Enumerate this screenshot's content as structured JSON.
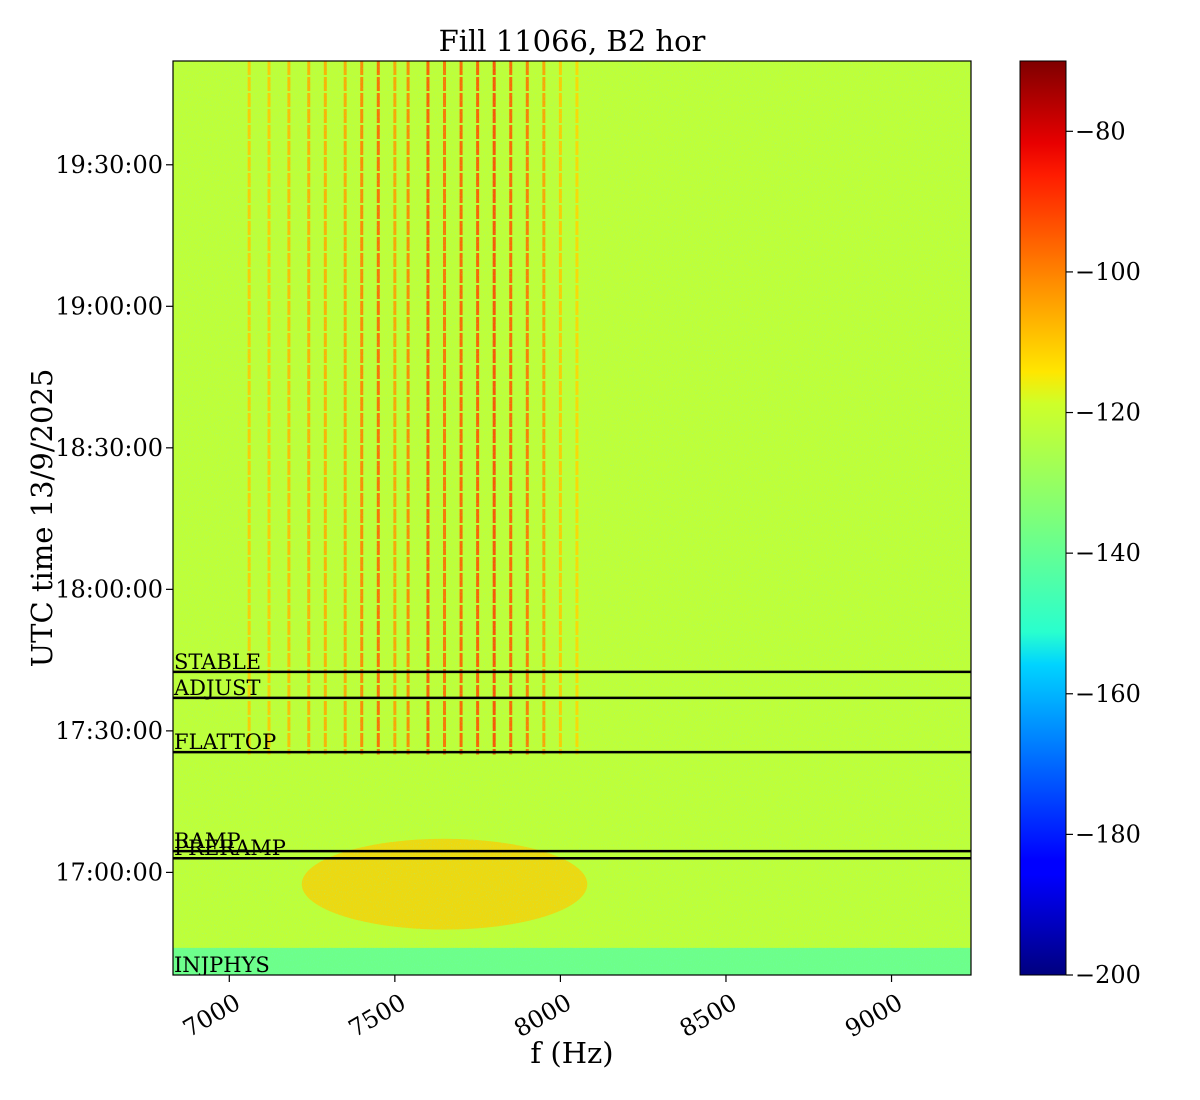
{
  "chart_data": {
    "type": "heatmap",
    "title": "Fill 11066, B2 hor",
    "xlabel": "f (Hz)",
    "ylabel": "UTC time 13/9/2025",
    "x_range": [
      6830,
      9240
    ],
    "y_range": [
      "16:38:15",
      "19:52:00"
    ],
    "x_ticks": [
      7000,
      7500,
      8000,
      8500,
      9000
    ],
    "x_tick_labels": [
      "7000",
      "7500",
      "8000",
      "8500",
      "9000"
    ],
    "y_ticks": [
      "17:00:00",
      "17:30:00",
      "18:00:00",
      "18:30:00",
      "19:00:00",
      "19:30:00"
    ],
    "y_tick_labels": [
      "17:00:00",
      "17:30:00",
      "18:00:00",
      "18:30:00",
      "19:00:00",
      "19:30:00"
    ],
    "colorbar": {
      "range": [
        -200,
        -70
      ],
      "ticks": [
        -200,
        -180,
        -160,
        -140,
        -120,
        -100,
        -80
      ],
      "tick_labels": [
        "−200",
        "−180",
        "−160",
        "−140",
        "−120",
        "−100",
        "−80"
      ],
      "colormap": "jet"
    },
    "background_level": -122,
    "events": [
      {
        "label": "STABLE",
        "time": "17:42:30"
      },
      {
        "label": "ADJUST",
        "time": "17:37:00"
      },
      {
        "label": "FLATTOP",
        "time": "17:25:30"
      },
      {
        "label": "RAMP",
        "time": "17:04:30"
      },
      {
        "label": "PRERAMP",
        "time": "17:03:00"
      },
      {
        "label": "INJPHYS",
        "time": "16:38:15"
      }
    ],
    "lines": [
      {
        "f": 7060,
        "level": -110,
        "from": "17:25:00"
      },
      {
        "f": 7120,
        "level": -110,
        "from": "17:25:00"
      },
      {
        "f": 7180,
        "level": -108,
        "from": "17:25:00"
      },
      {
        "f": 7240,
        "level": -106,
        "from": "17:25:00"
      },
      {
        "f": 7290,
        "level": -106,
        "from": "17:25:00"
      },
      {
        "f": 7350,
        "level": -105,
        "from": "17:25:00"
      },
      {
        "f": 7400,
        "level": -100,
        "from": "17:25:00"
      },
      {
        "f": 7450,
        "level": -96,
        "from": "17:25:00"
      },
      {
        "f": 7500,
        "level": -104,
        "from": "17:25:00"
      },
      {
        "f": 7540,
        "level": -100,
        "from": "17:25:00"
      },
      {
        "f": 7600,
        "level": -94,
        "from": "17:25:00"
      },
      {
        "f": 7650,
        "level": -97,
        "from": "17:25:00"
      },
      {
        "f": 7700,
        "level": -95,
        "from": "17:25:00"
      },
      {
        "f": 7750,
        "level": -94,
        "from": "17:25:00"
      },
      {
        "f": 7800,
        "level": -92,
        "from": "17:25:00"
      },
      {
        "f": 7850,
        "level": -95,
        "from": "17:25:00"
      },
      {
        "f": 7900,
        "level": -98,
        "from": "17:25:00"
      },
      {
        "f": 7950,
        "level": -104,
        "from": "17:25:00"
      },
      {
        "f": 8000,
        "level": -110,
        "from": "17:25:00"
      },
      {
        "f": 8050,
        "level": -112,
        "from": "17:25:00"
      }
    ],
    "regions": [
      {
        "name": "ramp-band",
        "f_range": [
          7400,
          7900
        ],
        "t_range": [
          "16:50:00",
          "17:05:00"
        ],
        "level": -110
      },
      {
        "name": "injection",
        "f_range": [
          6830,
          9240
        ],
        "t_range": [
          "16:38:15",
          "16:44:00"
        ],
        "level": -138
      }
    ]
  }
}
